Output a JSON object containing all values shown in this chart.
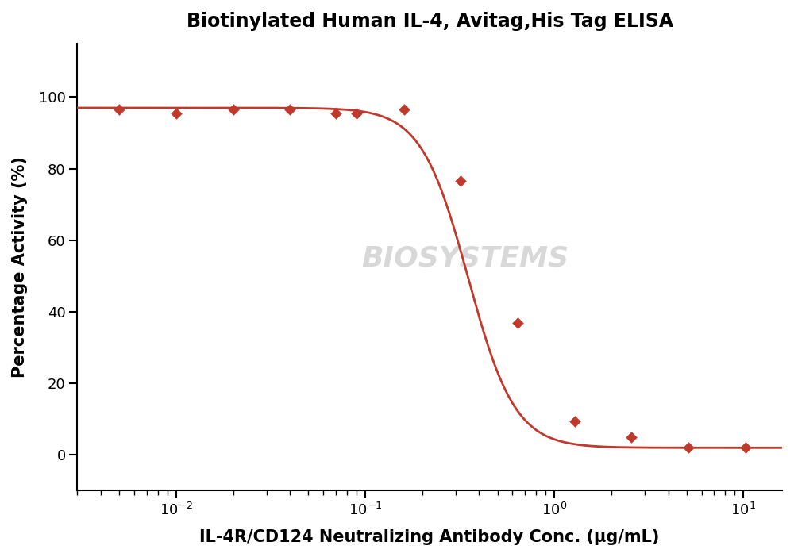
{
  "title": "Biotinylated Human IL-4, Avitag,His Tag ELISA",
  "xlabel": "IL-4R/CD124 Neutralizing Antibody Conc. (μg/mL)",
  "ylabel": "Percentage Activity (%)",
  "line_color": "#c0392b",
  "marker_color": "#c0392b",
  "marker_style": "D",
  "marker_size": 55,
  "line_width": 2.0,
  "x_data": [
    0.005,
    0.01,
    0.02,
    0.04,
    0.07,
    0.09,
    0.16,
    0.32,
    0.64,
    1.28,
    2.56,
    5.12,
    10.24
  ],
  "y_data": [
    96.5,
    95.5,
    96.5,
    96.5,
    95.5,
    95.5,
    96.5,
    76.5,
    37.0,
    9.5,
    5.0,
    2.0,
    2.0
  ],
  "xlim": [
    0.003,
    16.0
  ],
  "ylim": [
    -10,
    115
  ],
  "yticks": [
    0,
    20,
    40,
    60,
    80,
    100
  ],
  "title_fontsize": 17,
  "label_fontsize": 15,
  "tick_fontsize": 13,
  "background_color": "#ffffff",
  "watermark_color": "#d8d8d8",
  "watermark_fontsize": 26
}
